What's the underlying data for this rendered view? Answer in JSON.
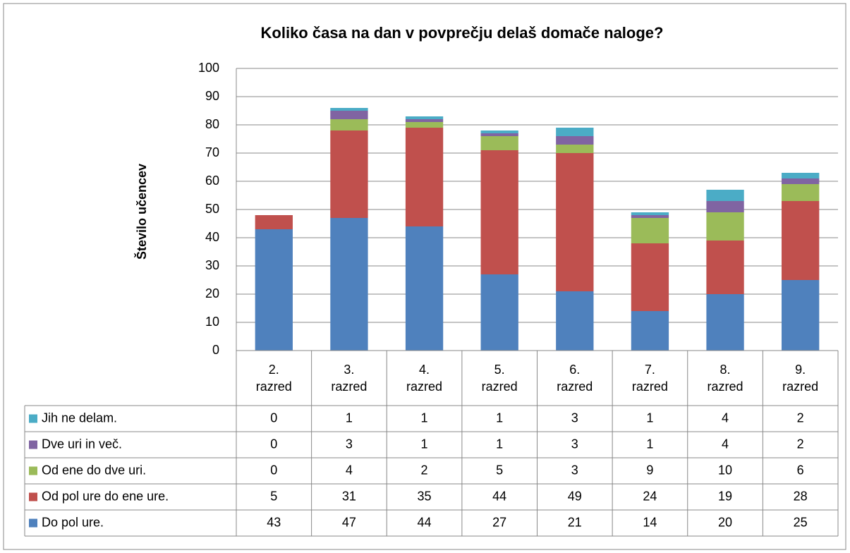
{
  "chart_data": {
    "type": "stacked_bar",
    "title": "Koliko časa na dan v povprečju delaš domače naloge?",
    "y_label": "Število učencev",
    "categories": [
      "2. razred",
      "3. razred",
      "4. razred",
      "5. razred",
      "6. razred",
      "7. razred",
      "8. razred",
      "9. razred"
    ],
    "series": [
      {
        "name": "Do pol ure.",
        "color": "#4f81bd",
        "values": [
          43,
          47,
          44,
          27,
          21,
          14,
          20,
          25
        ]
      },
      {
        "name": "Od pol ure do ene ure.",
        "color": "#c0504d",
        "values": [
          5,
          31,
          35,
          44,
          49,
          24,
          19,
          28
        ]
      },
      {
        "name": "Od ene do dve uri.",
        "color": "#9bbb59",
        "values": [
          0,
          4,
          2,
          5,
          3,
          9,
          10,
          6
        ]
      },
      {
        "name": "Dve uri in več.",
        "color": "#8064a2",
        "values": [
          0,
          3,
          1,
          1,
          3,
          1,
          4,
          2
        ]
      },
      {
        "name": "Jih ne delam.",
        "color": "#4bacc6",
        "values": [
          0,
          1,
          1,
          1,
          3,
          1,
          4,
          2
        ]
      }
    ],
    "ylim": [
      0,
      100
    ],
    "yticks": [
      0,
      10,
      20,
      30,
      40,
      50,
      60,
      70,
      80,
      90,
      100
    ],
    "grid": true
  }
}
